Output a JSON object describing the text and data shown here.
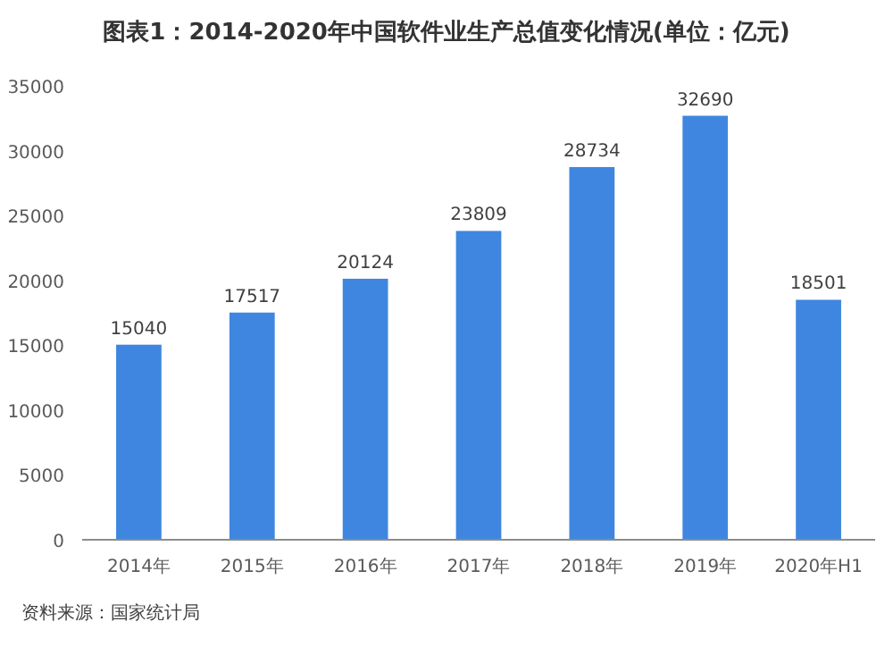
{
  "chart_data": {
    "type": "bar",
    "title": "图表1：2014-2020年中国软件业生产总值变化情况(单位：亿元)",
    "categories": [
      "2014年",
      "2015年",
      "2016年",
      "2017年",
      "2018年",
      "2019年",
      "2020年H1"
    ],
    "values": [
      15040,
      17517,
      20124,
      23809,
      28734,
      32690,
      18501
    ],
    "color": "#3f86e0",
    "data_labels": true,
    "grid": false,
    "ylim": [
      0,
      35000
    ],
    "yticks": [
      0,
      5000,
      10000,
      15000,
      20000,
      25000,
      30000,
      35000
    ],
    "annotations": [
      "资料来源：国家统计局"
    ]
  }
}
